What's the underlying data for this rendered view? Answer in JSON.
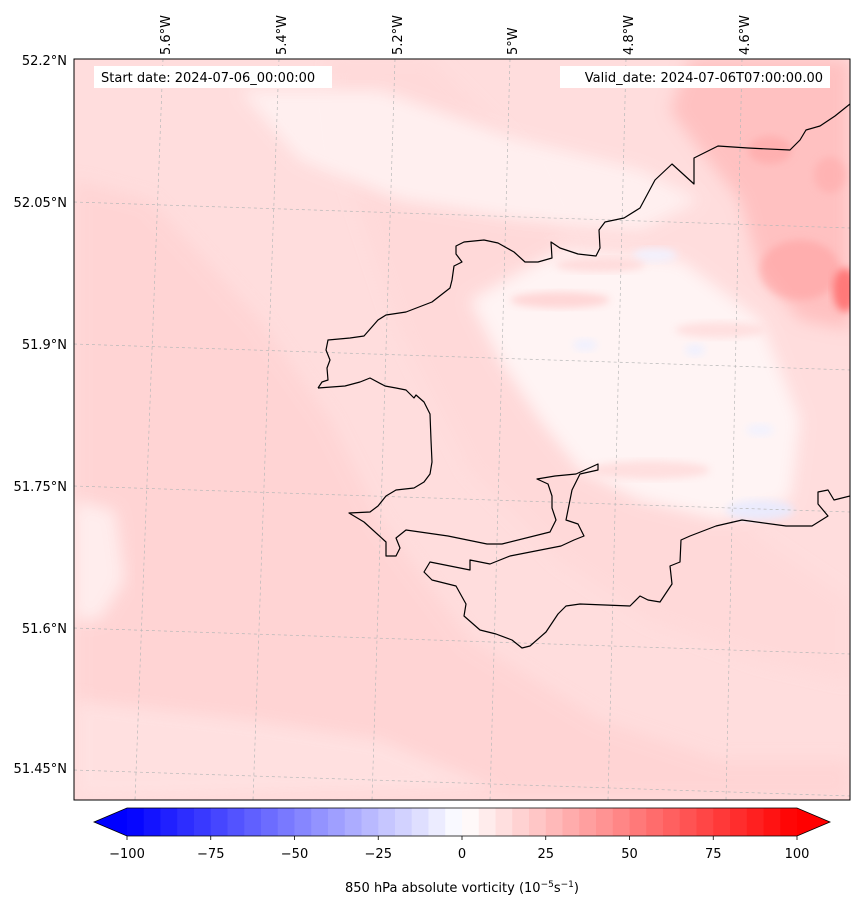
{
  "map": {
    "start_label": "Start date: 2024-07-06_00:00:00",
    "valid_label": "Valid_date: 2024-07-06T07:00:00.00",
    "lon_ticks": [
      "5.6°W",
      "5.4°W",
      "5.2°W",
      "5°W",
      "4.8°W",
      "4.6°W"
    ],
    "lat_ticks": [
      "52.2°N",
      "52.05°N",
      "51.9°N",
      "51.75°N",
      "51.6°N",
      "51.45°N"
    ],
    "colors": {
      "land_base": "#ffdcdc",
      "sea_base": "#fff2f2",
      "coastline": "#000000",
      "grid": "#b8b8b8"
    }
  },
  "colorbar": {
    "min": -100,
    "max": 100,
    "step": 5,
    "extend": "both",
    "ticks": [
      -100,
      -75,
      -50,
      -25,
      0,
      25,
      50,
      75,
      100
    ],
    "tick_labels": [
      "−100",
      "−75",
      "−50",
      "−25",
      "0",
      "25",
      "50",
      "75",
      "100"
    ],
    "label_prefix": "850 hPa absolute vorticity (10",
    "label_exp1": "−5",
    "label_mid": "s",
    "label_exp2": "−1",
    "label_suffix": ")",
    "colormap": "bwr"
  }
}
